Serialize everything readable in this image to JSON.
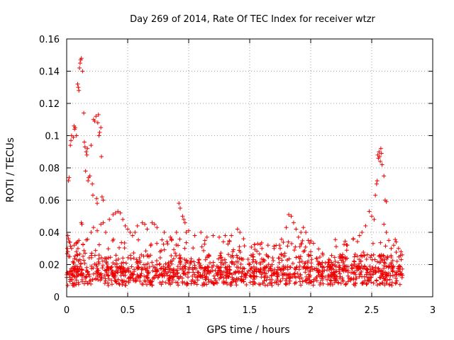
{
  "chart_data": {
    "type": "scatter",
    "title": "Day 269 of 2014, Rate Of TEC Index for receiver wtzr",
    "xlabel": "GPS time / hours",
    "ylabel": "ROTI / TECUs",
    "xlim": [
      0,
      3
    ],
    "ylim": [
      0,
      0.16
    ],
    "xticks": [
      0,
      0.5,
      1,
      1.5,
      2,
      2.5,
      3
    ],
    "xtick_labels": [
      "0",
      "0.5",
      "1",
      "1.5",
      "2",
      "2.5",
      "3"
    ],
    "yticks": [
      0,
      0.02,
      0.04,
      0.06,
      0.08,
      0.1,
      0.12,
      0.14,
      0.16
    ],
    "ytick_labels": [
      "0",
      "0.02",
      "0.04",
      "0.06",
      "0.08",
      "0.1",
      "0.12",
      "0.14",
      "0.16"
    ],
    "grid": true,
    "marker": "+",
    "color": "#ee0000",
    "series": [
      {
        "name": "wtzr",
        "points": [
          [
            0.0,
            0.012
          ],
          [
            0.005,
            0.03
          ],
          [
            0.01,
            0.028
          ],
          [
            0.015,
            0.072
          ],
          [
            0.02,
            0.074
          ],
          [
            0.025,
            0.025
          ],
          [
            0.03,
            0.094
          ],
          [
            0.035,
            0.097
          ],
          [
            0.04,
            0.1
          ],
          [
            0.05,
            0.018
          ],
          [
            0.055,
            0.099
          ],
          [
            0.06,
            0.106
          ],
          [
            0.065,
            0.104
          ],
          [
            0.07,
            0.105
          ],
          [
            0.08,
            0.1
          ],
          [
            0.09,
            0.132
          ],
          [
            0.095,
            0.13
          ],
          [
            0.1,
            0.128
          ],
          [
            0.105,
            0.142
          ],
          [
            0.11,
            0.145
          ],
          [
            0.115,
            0.147
          ],
          [
            0.12,
            0.148
          ],
          [
            0.13,
            0.14
          ],
          [
            0.14,
            0.114
          ],
          [
            0.145,
            0.096
          ],
          [
            0.15,
            0.093
          ],
          [
            0.155,
            0.078
          ],
          [
            0.16,
            0.09
          ],
          [
            0.165,
            0.088
          ],
          [
            0.17,
            0.092
          ],
          [
            0.175,
            0.072
          ],
          [
            0.18,
            0.074
          ],
          [
            0.19,
            0.075
          ],
          [
            0.2,
            0.094
          ],
          [
            0.21,
            0.07
          ],
          [
            0.215,
            0.063
          ],
          [
            0.22,
            0.11
          ],
          [
            0.23,
            0.109
          ],
          [
            0.24,
            0.112
          ],
          [
            0.245,
            0.061
          ],
          [
            0.25,
            0.058
          ],
          [
            0.255,
            0.108
          ],
          [
            0.26,
            0.113
          ],
          [
            0.265,
            0.1
          ],
          [
            0.27,
            0.102
          ],
          [
            0.28,
            0.105
          ],
          [
            0.285,
            0.087
          ],
          [
            0.29,
            0.062
          ],
          [
            0.3,
            0.06
          ],
          [
            0.12,
            0.046
          ],
          [
            0.125,
            0.045
          ],
          [
            0.1,
            0.035
          ],
          [
            0.08,
            0.033
          ],
          [
            0.06,
            0.032
          ],
          [
            0.04,
            0.03
          ],
          [
            0.02,
            0.034
          ],
          [
            0.01,
            0.038
          ],
          [
            0.015,
            0.036
          ],
          [
            0.2,
            0.04
          ],
          [
            0.22,
            0.043
          ],
          [
            0.25,
            0.041
          ],
          [
            0.28,
            0.045
          ],
          [
            0.3,
            0.046
          ],
          [
            0.32,
            0.04
          ],
          [
            0.35,
            0.048
          ],
          [
            0.38,
            0.051
          ],
          [
            0.4,
            0.052
          ],
          [
            0.42,
            0.053
          ],
          [
            0.44,
            0.052
          ],
          [
            0.46,
            0.048
          ],
          [
            0.48,
            0.044
          ],
          [
            0.5,
            0.042
          ],
          [
            0.52,
            0.04
          ],
          [
            0.54,
            0.038
          ],
          [
            0.56,
            0.04
          ],
          [
            0.58,
            0.044
          ],
          [
            0.62,
            0.046
          ],
          [
            0.64,
            0.045
          ],
          [
            0.66,
            0.042
          ],
          [
            0.7,
            0.046
          ],
          [
            0.72,
            0.045
          ],
          [
            0.74,
            0.043
          ],
          [
            0.8,
            0.04
          ],
          [
            0.85,
            0.037
          ],
          [
            0.9,
            0.04
          ],
          [
            0.92,
            0.058
          ],
          [
            0.93,
            0.055
          ],
          [
            0.95,
            0.05
          ],
          [
            0.96,
            0.048
          ],
          [
            0.97,
            0.046
          ],
          [
            0.98,
            0.04
          ],
          [
            1.0,
            0.041
          ],
          [
            1.05,
            0.038
          ],
          [
            1.1,
            0.04
          ],
          [
            1.15,
            0.037
          ],
          [
            1.2,
            0.038
          ],
          [
            1.25,
            0.037
          ],
          [
            1.3,
            0.038
          ],
          [
            1.35,
            0.038
          ],
          [
            1.4,
            0.042
          ],
          [
            1.42,
            0.04
          ],
          [
            1.45,
            0.036
          ],
          [
            1.5,
            0.02
          ],
          [
            1.55,
            0.022
          ],
          [
            1.6,
            0.03
          ],
          [
            1.65,
            0.032
          ],
          [
            1.7,
            0.03
          ],
          [
            1.75,
            0.03
          ],
          [
            1.8,
            0.043
          ],
          [
            1.82,
            0.051
          ],
          [
            1.84,
            0.05
          ],
          [
            1.86,
            0.046
          ],
          [
            1.88,
            0.042
          ],
          [
            1.9,
            0.037
          ],
          [
            1.92,
            0.04
          ],
          [
            1.94,
            0.043
          ],
          [
            1.96,
            0.04
          ],
          [
            1.98,
            0.035
          ],
          [
            2.0,
            0.028
          ],
          [
            2.05,
            0.024
          ],
          [
            2.1,
            0.026
          ],
          [
            2.15,
            0.02
          ],
          [
            2.2,
            0.022
          ],
          [
            2.25,
            0.025
          ],
          [
            2.3,
            0.032
          ],
          [
            2.35,
            0.036
          ],
          [
            2.4,
            0.038
          ],
          [
            2.42,
            0.04
          ],
          [
            2.45,
            0.044
          ],
          [
            2.48,
            0.053
          ],
          [
            2.5,
            0.05
          ],
          [
            2.52,
            0.048
          ],
          [
            2.53,
            0.063
          ],
          [
            2.54,
            0.07
          ],
          [
            2.545,
            0.072
          ],
          [
            2.55,
            0.088
          ],
          [
            2.555,
            0.086
          ],
          [
            2.56,
            0.09
          ],
          [
            2.565,
            0.087
          ],
          [
            2.57,
            0.084
          ],
          [
            2.575,
            0.092
          ],
          [
            2.58,
            0.089
          ],
          [
            2.585,
            0.082
          ],
          [
            2.6,
            0.075
          ],
          [
            2.61,
            0.06
          ],
          [
            2.62,
            0.059
          ],
          [
            2.6,
            0.045
          ],
          [
            2.62,
            0.04
          ],
          [
            2.64,
            0.035
          ],
          [
            2.66,
            0.03
          ],
          [
            2.68,
            0.032
          ],
          [
            2.7,
            0.034
          ],
          [
            2.72,
            0.03
          ],
          [
            2.74,
            0.028
          ],
          [
            2.75,
            0.026
          ]
        ]
      }
    ]
  }
}
